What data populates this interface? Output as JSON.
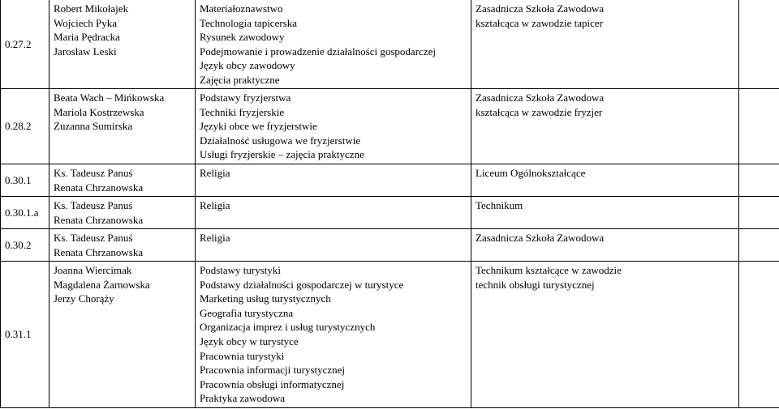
{
  "rows": [
    {
      "code": "0.27.2",
      "names": [
        "Robert Mikołajek",
        "Wojciech Pyka",
        "Maria Pędracka",
        "Jarosław Leski"
      ],
      "subjects": [
        "Materiałoznawstwo",
        "Technologia tapicerska",
        "Rysunek zawodowy",
        "Podejmowanie i prowadzenie działalności gospodarczej",
        "Język obcy zawodowy",
        "Zajęcia praktyczne"
      ],
      "school": [
        "Zasadnicza Szkoła Zawodowa",
        "kształcąca w zawodzie tapicer"
      ]
    },
    {
      "code": "0.28.2",
      "names": [
        "Beata Wach – Mińkowska",
        "Mariola Kostrzewska",
        "Zuzanna Sumirska"
      ],
      "subjects": [
        "Podstawy fryzjerstwa",
        "Techniki fryzjerskie",
        "Języki obce we fryzjerstwie",
        "Działalność usługowa we fryzjerstwie",
        "Usługi fryzjerskie – zajęcia praktyczne"
      ],
      "school": [
        "Zasadnicza Szkoła Zawodowa",
        "kształcąca w zawodzie fryzjer"
      ]
    },
    {
      "code": "0.30.1",
      "names": [
        "Ks. Tadeusz Panuś",
        "Renata Chrzanowska"
      ],
      "subjects": [
        "Religia"
      ],
      "school": [
        "Liceum Ogólnokształcące"
      ]
    },
    {
      "code": "0.30.1.a",
      "names": [
        "Ks. Tadeusz Panuś",
        "Renata Chrzanowska"
      ],
      "subjects": [
        "Religia"
      ],
      "school": [
        "Technikum"
      ]
    },
    {
      "code": "0.30.2",
      "names": [
        "Ks. Tadeusz Panuś",
        "Renata Chrzanowska"
      ],
      "subjects": [
        "Religia"
      ],
      "school": [
        "Zasadnicza Szkoła Zawodowa"
      ]
    },
    {
      "code": "0.31.1",
      "names": [
        "Joanna Wiercimak",
        "Magdalena Żarnowska",
        "Jerzy Chorąży"
      ],
      "subjects": [
        "Podstawy turystyki",
        "Podstawy działalności gospodarczej w turystyce",
        "Marketing usług turystycznych",
        "Geografia turystyczna",
        "Organizacja imprez i usług turystycznych",
        "Język obcy w turystyce",
        "Pracownia turystyki",
        "Pracownia informacji turystycznej",
        "Pracownia obsługi informatycznej",
        "Praktyka zawodowa"
      ],
      "school": [
        "Technikum kształcące w zawodzie",
        "technik obsługi turystycznej"
      ]
    }
  ]
}
